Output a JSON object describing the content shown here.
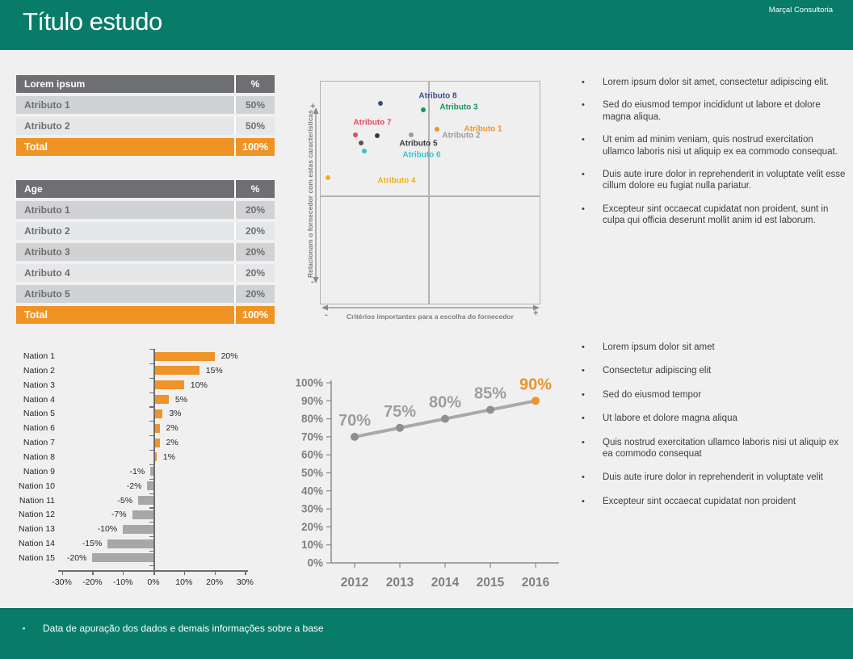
{
  "header": {
    "title": "Título estudo",
    "brand": "Marçal Consultoria"
  },
  "tables": [
    {
      "id": "table-lorem",
      "columns": [
        "Lorem ipsum",
        "%"
      ],
      "rows": [
        [
          "Atributo 1",
          "50%"
        ],
        [
          "Atributo 2",
          "50%"
        ]
      ],
      "total": [
        "Total",
        "100%"
      ]
    },
    {
      "id": "table-age",
      "columns": [
        "Age",
        "%"
      ],
      "rows": [
        [
          "Atributo 1",
          "20%"
        ],
        [
          "Atributo 2",
          "20%"
        ],
        [
          "Atributo 3",
          "20%"
        ],
        [
          "Atributo 4",
          "20%"
        ],
        [
          "Atributo 5",
          "20%"
        ]
      ],
      "total": [
        "Total",
        "100%"
      ]
    }
  ],
  "chart_data": [
    {
      "type": "scatter",
      "id": "quadrant",
      "xlabel": "Critérios importantes para a escolha do fornecedor",
      "ylabel": "Relacionam o fornecedor com estas características",
      "axis_signs": {
        "x_min": "-",
        "x_max": "+",
        "y_min": "-",
        "y_max": "+"
      },
      "points": [
        {
          "name": "Atributo 8",
          "color": "#3b4a89",
          "dot": [
            75,
            28
          ],
          "label": [
            146,
            19
          ]
        },
        {
          "name": "Atributo 3",
          "color": "#169662",
          "dot": [
            128,
            36
          ],
          "label": [
            172,
            33
          ]
        },
        {
          "name": "Atributo 7",
          "color": "#e8495f",
          "dot": [
            44,
            67
          ],
          "label": [
            65,
            52
          ]
        },
        {
          "name": "Atributo 1",
          "color": "#f0932c",
          "dot": [
            145,
            60
          ],
          "label": [
            202,
            60
          ]
        },
        {
          "name": "Atributo 2",
          "color": "#9b9b9b",
          "dot": [
            113,
            67
          ],
          "label": [
            175,
            68
          ]
        },
        {
          "name": "Atributo 5",
          "color": "#3a3a3a",
          "dot": [
            71,
            68
          ],
          "label": [
            122,
            78
          ]
        },
        {
          "name": "",
          "color": "#565656",
          "dot": [
            51,
            77
          ],
          "label": null
        },
        {
          "name": "Atributo 6",
          "color": "#32c5c9",
          "dot": [
            55,
            87
          ],
          "label": [
            126,
            92
          ]
        },
        {
          "name": "Atributo 4",
          "color": "#eeb211",
          "dot": [
            10,
            120
          ],
          "label": [
            95,
            124
          ]
        }
      ]
    },
    {
      "type": "bar",
      "id": "nations",
      "categories": [
        "Nation 1",
        "Nation 2",
        "Nation 3",
        "Nation 4",
        "Nation 5",
        "Nation 6",
        "Nation 7",
        "Nation 8",
        "Nation 9",
        "Nation 10",
        "Nation 11",
        "Nation 12",
        "Nation 13",
        "Nation 14",
        "Nation 15"
      ],
      "values": [
        20,
        15,
        10,
        5,
        3,
        2,
        2,
        1,
        -1,
        -2,
        -5,
        -7,
        -10,
        -15,
        -20
      ],
      "value_labels": [
        "20%",
        "15%",
        "10%",
        "5%",
        "3%",
        "2%",
        "2%",
        "1%",
        "-1%",
        "-2%",
        "-5%",
        "-7%",
        "-10%",
        "-15%",
        "-20%"
      ],
      "x_ticks": [
        "-30%",
        "-20%",
        "-10%",
        "0%",
        "10%",
        "20%",
        "30%"
      ],
      "xlim": [
        -30,
        30
      ],
      "positive_color": "#ee9428",
      "negative_color": "#a7a7a9"
    },
    {
      "type": "line",
      "id": "trend",
      "x": [
        "2012",
        "2013",
        "2014",
        "2015",
        "2016"
      ],
      "values": [
        70,
        75,
        80,
        85,
        90
      ],
      "value_labels": [
        "70%",
        "75%",
        "80%",
        "85%",
        "90%"
      ],
      "y_ticks": [
        "0%",
        "10%",
        "20%",
        "30%",
        "40%",
        "50%",
        "60%",
        "70%",
        "80%",
        "90%",
        "100%"
      ],
      "ylim": [
        0,
        100
      ],
      "line_color": "#a9a9a9",
      "dot_color": "#8f8f8f",
      "highlight_color": "#ef932c",
      "highlight_index": 4,
      "label_color": "#9e9e9e",
      "tick_color": "#7f7f7f"
    }
  ],
  "bullets_top": [
    "Lorem ipsum dolor sit amet, consectetur adipiscing elit.",
    "Sed do eiusmod tempor incididunt ut labore et dolore magna aliqua.",
    "Ut enim ad minim veniam, quis nostrud exercitation ullamco laboris nisi ut aliquip ex ea commodo consequat.",
    "Duis aute irure dolor in reprehenderit in voluptate velit esse cillum dolore eu fugiat nulla pariatur.",
    "Excepteur sint occaecat cupidatat non proident, sunt in culpa qui officia deserunt mollit anim id est laborum."
  ],
  "bullets_bottom": [
    "Lorem ipsum dolor sit amet",
    "Consectetur adipiscing elit",
    "Sed do eiusmod tempor",
    "Ut labore et dolore magna aliqua",
    "Quis nostrud exercitation ullamco laboris nisi ut aliquip ex ea commodo consequat",
    "Duis aute irure dolor in reprehenderit in voluptate velit",
    "Excepteur sint occaecat cupidatat non proident"
  ],
  "footer": {
    "note": "Data de apuração dos dados e demais informações sobre a base"
  },
  "colors": {
    "accent_teal": "#087c68",
    "accent_orange": "#ef9325"
  }
}
